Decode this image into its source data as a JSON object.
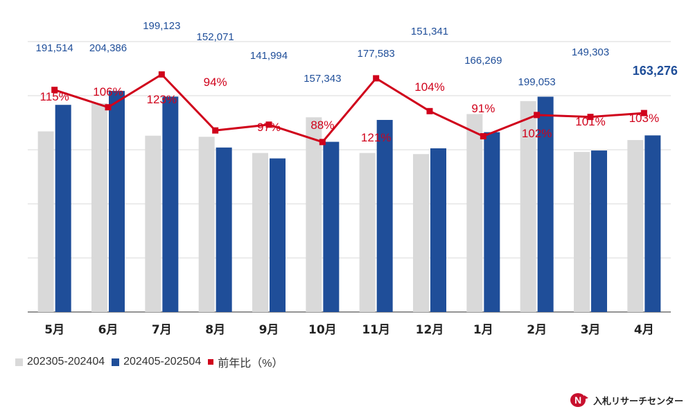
{
  "chart_data": {
    "type": "bar",
    "categories": [
      "5月",
      "6月",
      "7月",
      "8月",
      "9月",
      "10月",
      "11月",
      "12月",
      "1月",
      "2月",
      "3月",
      "4月"
    ],
    "series": [
      {
        "name": "202305-202404",
        "kind": "bar",
        "color": "#d9d9d9",
        "values": [
          167000,
          193000,
          163000,
          162000,
          147000,
          180000,
          147000,
          146000,
          183000,
          195000,
          148000,
          159000
        ]
      },
      {
        "name": "202405-202504",
        "kind": "bar",
        "color": "#1f4e99",
        "values": [
          191514,
          204386,
          199123,
          152071,
          141994,
          157343,
          177583,
          151341,
          166269,
          199053,
          149303,
          163276
        ],
        "labels": [
          "191,514",
          "204,386",
          "199,123",
          "152,071",
          "141,994",
          "157,343",
          "177,583",
          "151,341",
          "166,269",
          "199,053",
          "149,303",
          "163,276"
        ]
      },
      {
        "name": "前年比（%）",
        "kind": "line",
        "color": "#d0021b",
        "axis": "secondary",
        "values": [
          115,
          106,
          123,
          94,
          97,
          88,
          121,
          104,
          91,
          102,
          101,
          103
        ],
        "labels": [
          "115%",
          "106%",
          "123%",
          "94%",
          "97%",
          "88%",
          "121%",
          "104%",
          "91%",
          "102%",
          "101%",
          "103%"
        ]
      }
    ],
    "ylim": [
      0,
      250000
    ],
    "y2lim": [
      0,
      140
    ],
    "grid": true,
    "legend_position": "bottom-left",
    "highlight_last_label": true
  },
  "legend": {
    "items": [
      {
        "label": "202305-202404",
        "color": "#d9d9d9",
        "shape": "square"
      },
      {
        "label": "202405-202504",
        "color": "#1f4e99",
        "shape": "square"
      },
      {
        "label": "前年比（%）",
        "color": "#d0021b",
        "shape": "line-marker"
      }
    ]
  },
  "brand": {
    "name": "入札リサーチセンター",
    "logo_text": "N",
    "logo_color": "#c8102e"
  }
}
